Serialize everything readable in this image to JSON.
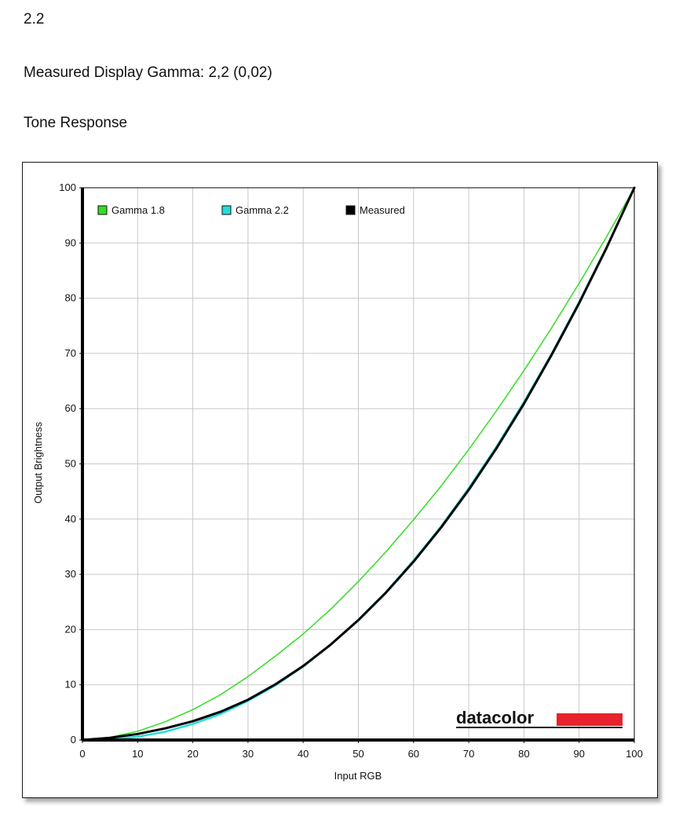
{
  "header": {
    "gamma_value": "2.2",
    "measured_gamma": "Measured Display Gamma: 2,2 (0,02)",
    "section_title": "Tone Response"
  },
  "brand": {
    "logo_text": "datacolor",
    "logo_accent_color": "#e8222c"
  },
  "chart_data": {
    "type": "line",
    "title": "",
    "xlabel": "Input RGB",
    "ylabel": "Output Brightness",
    "xlim": [
      0,
      100
    ],
    "ylim": [
      0,
      100
    ],
    "xticks": [
      0,
      10,
      20,
      30,
      40,
      50,
      60,
      70,
      80,
      90,
      100
    ],
    "yticks": [
      0,
      10,
      20,
      30,
      40,
      50,
      60,
      70,
      80,
      90,
      100
    ],
    "grid": true,
    "legend_position": "top-left",
    "x": [
      0,
      5,
      10,
      15,
      20,
      25,
      30,
      35,
      40,
      45,
      50,
      55,
      60,
      65,
      70,
      75,
      80,
      85,
      90,
      95,
      100
    ],
    "series": [
      {
        "name": "Gamma 1.8",
        "color": "#33dd22",
        "values": [
          0,
          0.5,
          1.6,
          3.3,
          5.5,
          8.2,
          11.5,
          15.2,
          19.2,
          23.7,
          28.7,
          34.1,
          39.9,
          46.0,
          52.6,
          59.6,
          66.9,
          74.6,
          82.7,
          91.2,
          100
        ]
      },
      {
        "name": "Gamma 2.2",
        "color": "#22dddd",
        "values": [
          0,
          0.1,
          0.6,
          1.5,
          2.9,
          4.7,
          7.1,
          9.9,
          13.3,
          17.3,
          21.8,
          26.8,
          32.5,
          38.7,
          45.6,
          53.1,
          61.2,
          69.9,
          79.3,
          89.3,
          100
        ]
      },
      {
        "name": "Measured",
        "color": "#000000",
        "values": [
          0,
          0.4,
          1.1,
          2.1,
          3.4,
          5.1,
          7.3,
          10.1,
          13.4,
          17.3,
          21.7,
          26.7,
          32.3,
          38.5,
          45.3,
          52.8,
          60.9,
          69.7,
          79.1,
          89.2,
          100
        ]
      }
    ]
  }
}
